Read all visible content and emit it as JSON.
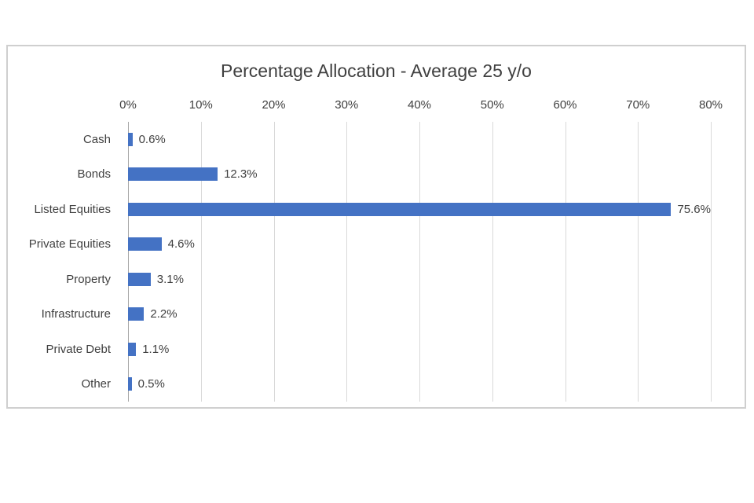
{
  "chart_data": {
    "type": "bar",
    "orientation": "horizontal",
    "title": "Percentage Allocation - Average 25 y/o",
    "categories": [
      "Cash",
      "Bonds",
      "Listed Equities",
      "Private Equities",
      "Property",
      "Infrastructure",
      "Private Debt",
      "Other"
    ],
    "values": [
      0.6,
      12.3,
      75.6,
      4.6,
      3.1,
      2.2,
      1.1,
      0.5
    ],
    "value_labels": [
      "0.6%",
      "12.3%",
      "75.6%",
      "4.6%",
      "3.1%",
      "2.2%",
      "1.1%",
      "0.5%"
    ],
    "x_ticks": [
      "0%",
      "10%",
      "20%",
      "30%",
      "40%",
      "50%",
      "60%",
      "70%",
      "80%"
    ],
    "xlim": [
      0,
      80
    ],
    "xlabel": "",
    "ylabel": "",
    "axis_position": "top",
    "gridlines": true,
    "legend": "none",
    "bar_color": "#4472C4",
    "gridline_color": "#d9d9d9",
    "axis_line_color": "#a6a6a6",
    "text_color": "#404040",
    "frame_border_color": "#cfcfcf"
  }
}
